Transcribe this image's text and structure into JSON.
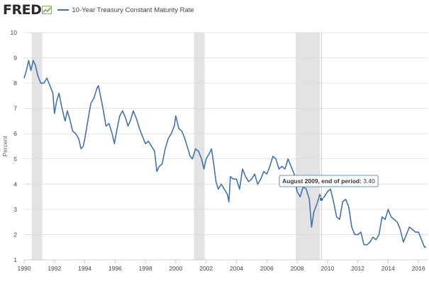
{
  "header": {
    "logo_text": "FRED",
    "logo_icon": "trend-chart-icon"
  },
  "tooltip": {
    "label": "August 2009, end of period: ",
    "value": "3.40"
  },
  "chart_data": {
    "type": "line",
    "title": "",
    "xlabel": "",
    "ylabel": "Percent",
    "xlim": [
      1990.0,
      2016.6
    ],
    "ylim": [
      1,
      10
    ],
    "x_ticks": [
      "1990",
      "1992",
      "1994",
      "1996",
      "1998",
      "2000",
      "2002",
      "2004",
      "2006",
      "2008",
      "2010",
      "2012",
      "2014",
      "2016"
    ],
    "y_ticks": [
      "1",
      "2",
      "3",
      "4",
      "5",
      "6",
      "7",
      "8",
      "9",
      "10"
    ],
    "grid": true,
    "legend": "top-left",
    "recessions": [
      [
        1990.5,
        1991.2
      ],
      [
        2001.2,
        2001.9
      ],
      [
        2007.9,
        2009.5
      ]
    ],
    "highlight": {
      "x": 2009.6,
      "y": 3.4
    },
    "series": [
      {
        "name": "10-Year Treasury Constant Maturity Rate",
        "color": "#4572a7",
        "points": [
          [
            1990.0,
            8.2
          ],
          [
            1990.15,
            8.5
          ],
          [
            1990.3,
            8.9
          ],
          [
            1990.45,
            8.5
          ],
          [
            1990.6,
            8.9
          ],
          [
            1990.75,
            8.7
          ],
          [
            1990.9,
            8.3
          ],
          [
            1991.1,
            8.0
          ],
          [
            1991.3,
            8.0
          ],
          [
            1991.5,
            8.2
          ],
          [
            1991.7,
            7.9
          ],
          [
            1991.9,
            7.6
          ],
          [
            1992.0,
            6.8
          ],
          [
            1992.15,
            7.3
          ],
          [
            1992.3,
            7.6
          ],
          [
            1992.5,
            7.0
          ],
          [
            1992.7,
            6.5
          ],
          [
            1992.85,
            6.9
          ],
          [
            1993.0,
            6.6
          ],
          [
            1993.2,
            6.1
          ],
          [
            1993.4,
            6.0
          ],
          [
            1993.6,
            5.8
          ],
          [
            1993.75,
            5.4
          ],
          [
            1993.9,
            5.5
          ],
          [
            1994.0,
            5.8
          ],
          [
            1994.2,
            6.5
          ],
          [
            1994.4,
            7.2
          ],
          [
            1994.6,
            7.4
          ],
          [
            1994.8,
            7.8
          ],
          [
            1994.9,
            7.9
          ],
          [
            1995.0,
            7.6
          ],
          [
            1995.2,
            7.0
          ],
          [
            1995.4,
            6.3
          ],
          [
            1995.6,
            6.4
          ],
          [
            1995.8,
            6.0
          ],
          [
            1995.95,
            5.6
          ],
          [
            1996.1,
            6.1
          ],
          [
            1996.3,
            6.7
          ],
          [
            1996.5,
            6.9
          ],
          [
            1996.7,
            6.6
          ],
          [
            1996.85,
            6.3
          ],
          [
            1997.0,
            6.5
          ],
          [
            1997.2,
            6.9
          ],
          [
            1997.4,
            6.6
          ],
          [
            1997.6,
            6.2
          ],
          [
            1997.8,
            5.9
          ],
          [
            1998.0,
            5.6
          ],
          [
            1998.2,
            5.7
          ],
          [
            1998.4,
            5.5
          ],
          [
            1998.6,
            5.3
          ],
          [
            1998.75,
            4.5
          ],
          [
            1998.9,
            4.7
          ],
          [
            1999.1,
            4.8
          ],
          [
            1999.3,
            5.4
          ],
          [
            1999.5,
            5.8
          ],
          [
            1999.7,
            6.0
          ],
          [
            1999.9,
            6.3
          ],
          [
            2000.0,
            6.7
          ],
          [
            2000.2,
            6.2
          ],
          [
            2000.4,
            6.1
          ],
          [
            2000.6,
            5.8
          ],
          [
            2000.8,
            5.4
          ],
          [
            2000.95,
            5.1
          ],
          [
            2001.1,
            5.0
          ],
          [
            2001.3,
            5.4
          ],
          [
            2001.5,
            5.3
          ],
          [
            2001.7,
            5.0
          ],
          [
            2001.85,
            4.6
          ],
          [
            2002.0,
            5.0
          ],
          [
            2002.2,
            5.2
          ],
          [
            2002.35,
            5.4
          ],
          [
            2002.5,
            4.8
          ],
          [
            2002.65,
            4.1
          ],
          [
            2002.8,
            3.8
          ],
          [
            2003.0,
            4.0
          ],
          [
            2003.2,
            3.8
          ],
          [
            2003.4,
            3.6
          ],
          [
            2003.5,
            3.3
          ],
          [
            2003.6,
            4.3
          ],
          [
            2003.8,
            4.2
          ],
          [
            2004.0,
            4.2
          ],
          [
            2004.2,
            3.8
          ],
          [
            2004.4,
            4.6
          ],
          [
            2004.6,
            4.3
          ],
          [
            2004.8,
            4.1
          ],
          [
            2005.0,
            4.2
          ],
          [
            2005.2,
            4.4
          ],
          [
            2005.4,
            4.0
          ],
          [
            2005.6,
            4.2
          ],
          [
            2005.8,
            4.5
          ],
          [
            2006.0,
            4.4
          ],
          [
            2006.2,
            4.7
          ],
          [
            2006.4,
            5.1
          ],
          [
            2006.6,
            5.0
          ],
          [
            2006.8,
            4.6
          ],
          [
            2007.0,
            4.7
          ],
          [
            2007.2,
            4.6
          ],
          [
            2007.4,
            5.0
          ],
          [
            2007.6,
            4.7
          ],
          [
            2007.8,
            4.4
          ],
          [
            2008.0,
            3.7
          ],
          [
            2008.2,
            3.5
          ],
          [
            2008.4,
            3.9
          ],
          [
            2008.6,
            3.8
          ],
          [
            2008.8,
            3.4
          ],
          [
            2008.95,
            2.3
          ],
          [
            2009.1,
            2.9
          ],
          [
            2009.3,
            3.2
          ],
          [
            2009.5,
            3.6
          ],
          [
            2009.6,
            3.4
          ],
          [
            2009.8,
            3.5
          ],
          [
            2010.0,
            3.7
          ],
          [
            2010.2,
            3.8
          ],
          [
            2010.4,
            3.3
          ],
          [
            2010.6,
            2.7
          ],
          [
            2010.8,
            2.6
          ],
          [
            2011.0,
            3.3
          ],
          [
            2011.2,
            3.4
          ],
          [
            2011.4,
            3.1
          ],
          [
            2011.6,
            2.3
          ],
          [
            2011.8,
            2.0
          ],
          [
            2012.0,
            2.0
          ],
          [
            2012.2,
            2.1
          ],
          [
            2012.4,
            1.6
          ],
          [
            2012.6,
            1.6
          ],
          [
            2012.8,
            1.7
          ],
          [
            2013.0,
            1.9
          ],
          [
            2013.2,
            1.8
          ],
          [
            2013.4,
            2.0
          ],
          [
            2013.6,
            2.7
          ],
          [
            2013.8,
            2.6
          ],
          [
            2014.0,
            3.0
          ],
          [
            2014.2,
            2.7
          ],
          [
            2014.4,
            2.6
          ],
          [
            2014.6,
            2.5
          ],
          [
            2014.8,
            2.2
          ],
          [
            2015.0,
            1.7
          ],
          [
            2015.2,
            2.0
          ],
          [
            2015.4,
            2.3
          ],
          [
            2015.6,
            2.2
          ],
          [
            2015.8,
            2.1
          ],
          [
            2016.0,
            2.1
          ],
          [
            2016.2,
            1.8
          ],
          [
            2016.4,
            1.5
          ],
          [
            2016.5,
            1.5
          ]
        ]
      }
    ]
  }
}
